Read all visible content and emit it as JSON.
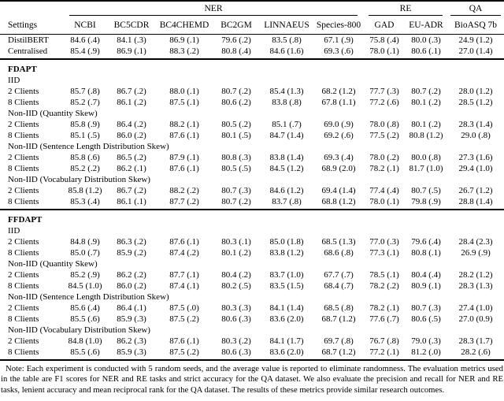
{
  "header": {
    "settings_label": "Settings",
    "groups": [
      {
        "label": "NER",
        "span": 6,
        "pad": 8
      },
      {
        "label": "RE",
        "span": 2,
        "pad": 6
      },
      {
        "label": "QA",
        "span": 1,
        "pad": 4
      }
    ],
    "columns": [
      "NCBI",
      "BC5CDR",
      "BC4CHEMD",
      "BC2GM",
      "LINNAEUS",
      "Species-800",
      "GAD",
      "EU-ADR",
      "BioASQ 7b"
    ]
  },
  "baseline_rows": [
    {
      "label": "DistilBERT",
      "values": [
        "84.6 (.4)",
        "84.1 (.3)",
        "86.9 (.1)",
        "79.6 (.2)",
        "83.5 (.8)",
        "67.1 (.9)",
        "75.8 (.4)",
        "80.0 (.3)",
        "24.9 (1.2)"
      ]
    },
    {
      "label": "Centralised",
      "values": [
        "85.4 (.9)",
        "86.9 (.1)",
        "88.3 (.2)",
        "80.8 (.4)",
        "84.6 (1.6)",
        "69.3 (.6)",
        "78.0 (.1)",
        "80.6 (.1)",
        "27.0 (1.4)"
      ]
    }
  ],
  "sections": [
    {
      "title": "FDAPT",
      "subsections": [
        {
          "title": "IID",
          "rows": [
            {
              "label": "2 Clients",
              "values": [
                "85.7 (.8)",
                "86.7 (.2)",
                "88.0 (.1)",
                "80.7 (.2)",
                "85.4 (1.3)",
                "68.2 (1.2)",
                "77.7 (.3)",
                "80.7 (.2)",
                "28.0 (1.2)"
              ]
            },
            {
              "label": "8 Clients",
              "values": [
                "85.2 (.7)",
                "86.1 (.2)",
                "87.5 (.1)",
                "80.6 (.2)",
                "83.8 (.8)",
                "67.8 (1.1)",
                "77.2 (.6)",
                "80.1 (.2)",
                "28.5 (1.2)"
              ]
            }
          ]
        },
        {
          "title": "Non-IID (Quantity Skew)",
          "rows": [
            {
              "label": "2 Clients",
              "values": [
                "85.8 (.9)",
                "86.4 (.2)",
                "88.2 (.1)",
                "80.5 (.2)",
                "85.1 (.7)",
                "69.0 (.9)",
                "78.0 (.8)",
                "80.1 (.2)",
                "28.3 (1.4)"
              ]
            },
            {
              "label": "8 Clients",
              "values": [
                "85.1 (.5)",
                "86.0 (.2)",
                "87.6 (.1)",
                "80.1 (.5)",
                "84.7 (1.4)",
                "69.2 (.6)",
                "77.5 (.2)",
                "80.8 (1.2)",
                "29.0 (.8)"
              ]
            }
          ]
        },
        {
          "title": "Non-IID (Sentence Length Distribution Skew)",
          "rows": [
            {
              "label": "2 Clients",
              "values": [
                "85.8 (.6)",
                "86.5 (.2)",
                "87.9 (.1)",
                "80.8 (.3)",
                "83.8 (1.4)",
                "69.3 (.4)",
                "78.0 (.2)",
                "80.0 (.8)",
                "27.3 (1.6)"
              ]
            },
            {
              "label": "8 Clients",
              "values": [
                "85.2 (.2)",
                "86.2 (.1)",
                "87.6 (.1)",
                "80.5 (.5)",
                "84.5 (1.2)",
                "68.9 (2.0)",
                "78.2 (.1)",
                "81.7 (1.0)",
                "29.4 (1.0)"
              ]
            }
          ]
        },
        {
          "title": "Non-IID (Vocabulary Distribution Skew)",
          "rows": [
            {
              "label": "2 Clients",
              "values": [
                "85.8 (1.2)",
                "86.7 (.2)",
                "88.2 (.2)",
                "80.7 (.3)",
                "84.6 (1.2)",
                "69.4 (1.4)",
                "77.4 (.4)",
                "80.7 (.5)",
                "26.7 (1.2)"
              ]
            },
            {
              "label": "8 Clients",
              "values": [
                "85.3 (.4)",
                "86.1 (.1)",
                "87.7 (.2)",
                "80.7 (.2)",
                "83.7 (.8)",
                "68.8 (1.2)",
                "78.0 (.1)",
                "79.8 (.9)",
                "28.8 (1.4)"
              ]
            }
          ]
        }
      ]
    },
    {
      "title": "FFDAPT",
      "subsections": [
        {
          "title": "IID",
          "rows": [
            {
              "label": "2 Clients",
              "values": [
                "84.8 (.9)",
                "86.3 (.2)",
                "87.6 (.1)",
                "80.3 (.1)",
                "85.0 (1.8)",
                "68.5 (1.3)",
                "77.0 (.3)",
                "79.6 (.4)",
                "28.4 (2.3)"
              ]
            },
            {
              "label": "8 Clients",
              "values": [
                "85.0 (.7)",
                "85.9 (.2)",
                "87.4 (.2)",
                "80.1 (.2)",
                "83.8 (1.2)",
                "68.6 (.8)",
                "77.3 (.1)",
                "80.8 (.1)",
                "26.9 (.9)"
              ]
            }
          ]
        },
        {
          "title": "Non-IID (Quantity Skew)",
          "rows": [
            {
              "label": "2 Clients",
              "values": [
                "85.2 (.9)",
                "86.2 (.2)",
                "87.7 (.1)",
                "80.4 (.2)",
                "83.7 (1.0)",
                "67.7 (.7)",
                "78.5 (.1)",
                "80.4 (.4)",
                "28.2 (1.2)"
              ]
            },
            {
              "label": "8 Clients",
              "values": [
                "84.5 (1.0)",
                "86.0 (.2)",
                "87.4 (.1)",
                "80.2 (.5)",
                "83.5 (1.5)",
                "68.4 (.7)",
                "78.2 (.2)",
                "80.9 (.1)",
                "28.3 (1.3)"
              ]
            }
          ]
        },
        {
          "title": "Non-IID (Sentence Length Distribution Skew)",
          "rows": [
            {
              "label": "2 Clients",
              "values": [
                "85.6 (.4)",
                "86.4 (.1)",
                "87.5 (.0)",
                "80.3 (.3)",
                "84.1 (1.4)",
                "68.5 (.8)",
                "78.2 (.1)",
                "80.7 (.3)",
                "27.4 (1.0)"
              ]
            },
            {
              "label": "8 Clients",
              "values": [
                "85.5 (.6)",
                "85.9 (.3)",
                "87.5 (.2)",
                "80.6 (.3)",
                "83.6 (2.0)",
                "68.7 (1.2)",
                "77.6 (.7)",
                "80.6 (.5)",
                "27.0 (0.9)"
              ]
            }
          ]
        },
        {
          "title": "Non-IID (Vocabulary Distribution Skew)",
          "rows": [
            {
              "label": "2 Clients",
              "values": [
                "84.8 (1.0)",
                "86.2 (.3)",
                "87.6 (.1)",
                "80.3 (.2)",
                "84.1 (1.7)",
                "69.7 (.8)",
                "76.7 (.8)",
                "79.0 (.3)",
                "28.3 (1.7)"
              ]
            },
            {
              "label": "8 Clients",
              "values": [
                "85.5 (.6)",
                "85.9 (.3)",
                "87.5 (.2)",
                "80.6 (.3)",
                "83.6 (2.0)",
                "68.7 (1.2)",
                "77.2 (.1)",
                "81.2 (.0)",
                "28.2 (.6)"
              ]
            }
          ]
        }
      ]
    }
  ],
  "note": "Note: Each experiment is conducted with 5 random seeds, and the average value is reported to eliminate randomness. The evaluation metrics used in the table are F1 scores for NER and RE tasks and strict accuracy for the QA dataset. We also evaluate the precision and recall for NER and RE tasks, lenient accuracy and mean reciprocal rank for the QA dataset. The results of these metrics provide similar research outcomes."
}
